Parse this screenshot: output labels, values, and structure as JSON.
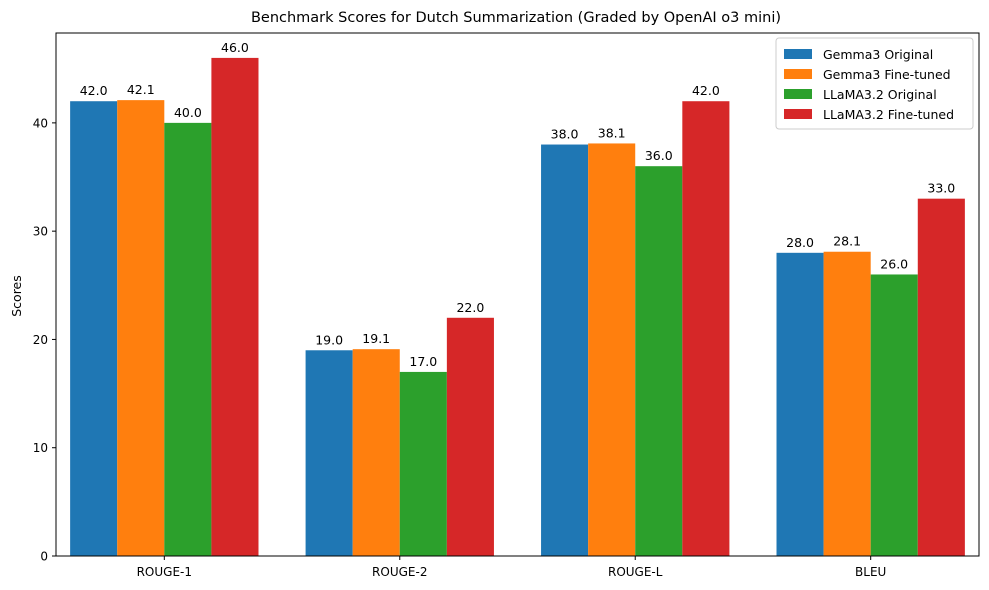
{
  "chart_data": {
    "type": "bar",
    "title": "Benchmark Scores for Dutch Summarization (Graded by OpenAI o3 mini)",
    "xlabel": "",
    "ylabel": "Scores",
    "categories": [
      "ROUGE-1",
      "ROUGE-2",
      "ROUGE-L",
      "BLEU"
    ],
    "ylim": [
      0,
      48.3
    ],
    "yticks": [
      0,
      10,
      20,
      30,
      40
    ],
    "grid": false,
    "legend_position": "top-right",
    "series": [
      {
        "name": "Gemma3 Original",
        "color": "#1f77b4",
        "values": [
          42.0,
          19.0,
          38.0,
          28.0
        ],
        "labels": [
          "42.0",
          "19.0",
          "38.0",
          "28.0"
        ]
      },
      {
        "name": "Gemma3 Fine-tuned",
        "color": "#ff7f0e",
        "values": [
          42.1,
          19.1,
          38.1,
          28.1
        ],
        "labels": [
          "42.1",
          "19.1",
          "38.1",
          "28.1"
        ]
      },
      {
        "name": "LLaMA3.2 Original",
        "color": "#2ca02c",
        "values": [
          40.0,
          17.0,
          36.0,
          26.0
        ],
        "labels": [
          "40.0",
          "17.0",
          "36.0",
          "26.0"
        ]
      },
      {
        "name": "LLaMA3.2 Fine-tuned",
        "color": "#d62728",
        "values": [
          46.0,
          22.0,
          42.0,
          33.0
        ],
        "labels": [
          "46.0",
          "22.0",
          "42.0",
          "33.0"
        ]
      }
    ]
  }
}
